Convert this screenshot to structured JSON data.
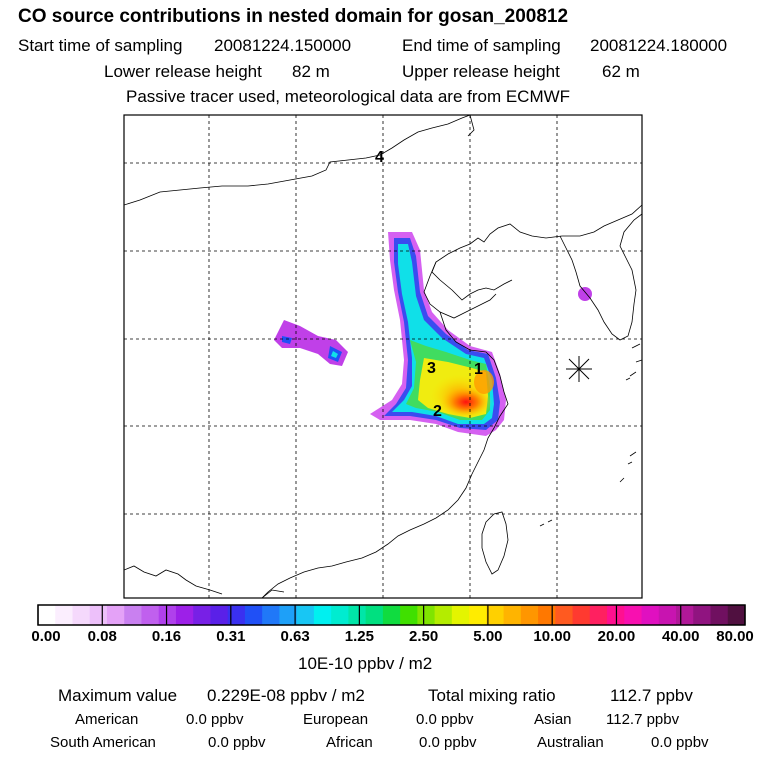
{
  "header": {
    "title": "CO  source contributions in nested domain for gosan_200812",
    "start_label": "Start time of sampling",
    "start_value": "20081224.150000",
    "end_label": "End time of sampling",
    "end_value": "20081224.180000",
    "lower_label": "Lower release height",
    "lower_value": "82 m",
    "upper_label": "Upper release height",
    "upper_value": "62 m",
    "note": "Passive tracer used, meteorological data are from ECMWF"
  },
  "map": {
    "site_markers": [
      "1",
      "2",
      "3",
      "4"
    ],
    "receptor_icon": "asterisk-receptor-icon"
  },
  "colorbar": {
    "colors": [
      "#ffffff",
      "#fbeefe",
      "#f5d9fc",
      "#edc0fa",
      "#e4a2f7",
      "#c980f0",
      "#c060ee",
      "#b040ec",
      "#9d20e8",
      "#7820e6",
      "#5a20e8",
      "#3a30f0",
      "#2050f6",
      "#2078f8",
      "#1ea0f8",
      "#18c6f4",
      "#00f0f0",
      "#00ecd0",
      "#00e6a8",
      "#00e080",
      "#10dc40",
      "#40e000",
      "#80e400",
      "#b4ec00",
      "#e4f400",
      "#ffec00",
      "#ffd000",
      "#ffb400",
      "#ff9600",
      "#ff7800",
      "#ff5a20",
      "#ff3a30",
      "#ff2060",
      "#ff1090",
      "#f810b0",
      "#e010c0",
      "#c814b0",
      "#b01898",
      "#901480",
      "#701060",
      "#501040"
    ],
    "ticks": [
      "0.00",
      "0.08",
      "0.16",
      "0.31",
      "0.63",
      "1.25",
      "2.50",
      "5.00",
      "10.00",
      "20.00",
      "40.00",
      "80.00"
    ],
    "units": "10E-10 ppbv / m2"
  },
  "stats": {
    "max_label": "Maximum value",
    "max_value": "0.229E-08 ppbv / m2",
    "total_label": "Total mixing ratio",
    "total_value": "112.7 ppbv",
    "american_label": "American",
    "american_value": "0.0 ppbv",
    "european_label": "European",
    "european_value": "0.0 ppbv",
    "asian_label": "Asian",
    "asian_value": "112.7 ppbv",
    "south_american_label": "South American",
    "south_american_value": "0.0 ppbv",
    "african_label": "African",
    "african_value": "0.0 ppbv",
    "australian_label": "Australian",
    "australian_value": "0.0 ppbv"
  }
}
